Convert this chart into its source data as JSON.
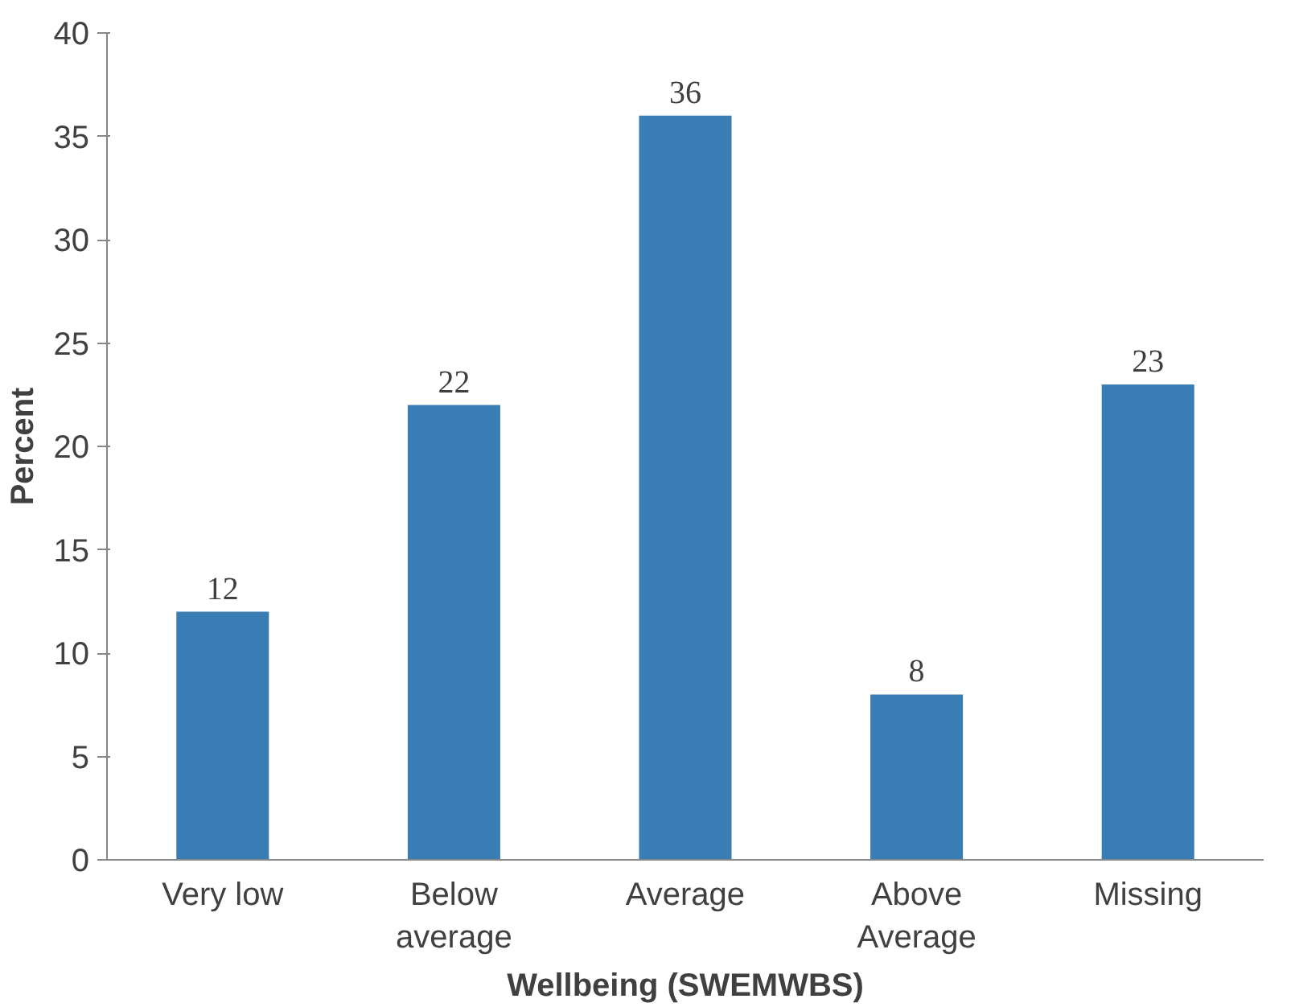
{
  "chart_data": {
    "type": "bar",
    "xlabel": "Wellbeing (SWEMWBS)",
    "ylabel": "Percent",
    "categories": [
      "Very low",
      "Below\naverage",
      "Average",
      "Above\nAverage",
      "Missing"
    ],
    "values": [
      12,
      22,
      36,
      8,
      23
    ],
    "color": "#3a7db4",
    "ylim": [
      0,
      40
    ],
    "yticks": [
      0,
      5,
      10,
      15,
      20,
      25,
      30,
      35,
      40
    ],
    "grid": false,
    "data_labels": true
  }
}
